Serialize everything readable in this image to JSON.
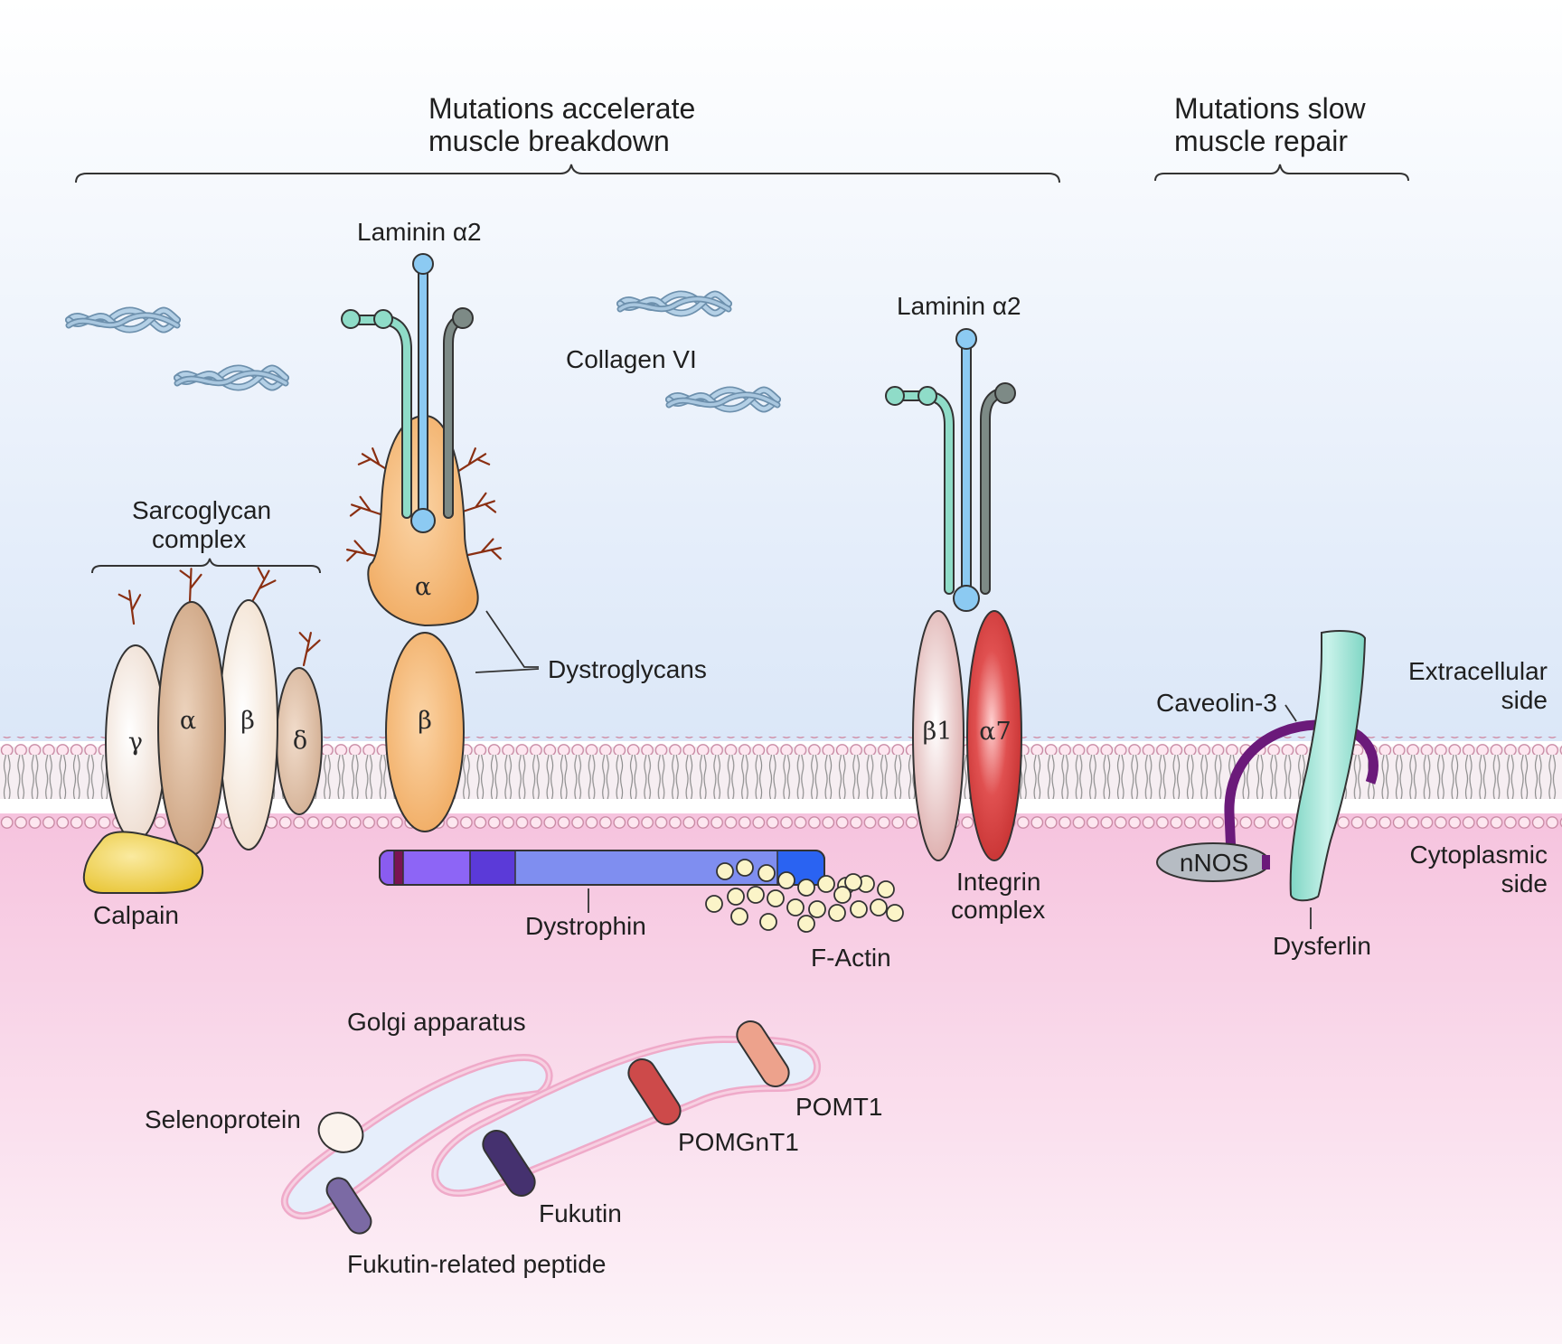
{
  "headers": {
    "breakdown_line1": "Mutations accelerate",
    "breakdown_line2": "muscle breakdown",
    "repair_line1": "Mutations slow",
    "repair_line2": "muscle repair"
  },
  "labels": {
    "laminin_left": "Laminin α2",
    "laminin_right": "Laminin α2",
    "collagen": "Collagen VI",
    "sarcoglycan_line1": "Sarcoglycan",
    "sarcoglycan_line2": "complex",
    "dystroglycans": "Dystroglycans",
    "extracellular_line1": "Extracellular",
    "extracellular_line2": "side",
    "cytoplasmic_line1": "Cytoplasmic",
    "cytoplasmic_line2": "side",
    "caveolin": "Caveolin-3",
    "nnos": "nNOS",
    "dysferlin": "Dysferlin",
    "calpain": "Calpain",
    "dystrophin": "Dystrophin",
    "f_actin": "F-Actin",
    "integrin_line1": "Integrin",
    "integrin_line2": "complex",
    "golgi": "Golgi apparatus",
    "selenoprotein": "Selenoprotein",
    "fukutin_related": "Fukutin-related peptide",
    "fukutin": "Fukutin",
    "pomgnt1": "POMGnT1",
    "pomt1": "POMT1"
  },
  "subunits": {
    "sg_gamma": "γ",
    "sg_alpha": "α",
    "sg_beta": "β",
    "sg_delta": "δ",
    "dg_alpha": "α",
    "dg_beta": "β",
    "int_beta1": "β1",
    "int_alpha7": "α7"
  },
  "colors": {
    "extracellular_top": "#ffffff",
    "extracellular_bottom": "#dbe7f8",
    "cytoplasm_top": "#f6c3de",
    "cytoplasm_bottom": "#fdf3f8",
    "dystroglycan": "#f5b978",
    "laminin_blue": "#8ccaf2",
    "laminin_teal": "#8fdcc8",
    "laminin_grey": "#7d8a86",
    "integrin_beta1": "#e4b4b4",
    "integrin_alpha7": "#d63b3b",
    "calpain": "#f2d24e",
    "dystrophin_main": "#7f8ef0",
    "dysferlin": "#8fe0d0",
    "caveolin": "#6b1a7a",
    "glycan_branch": "#8a2f12"
  }
}
